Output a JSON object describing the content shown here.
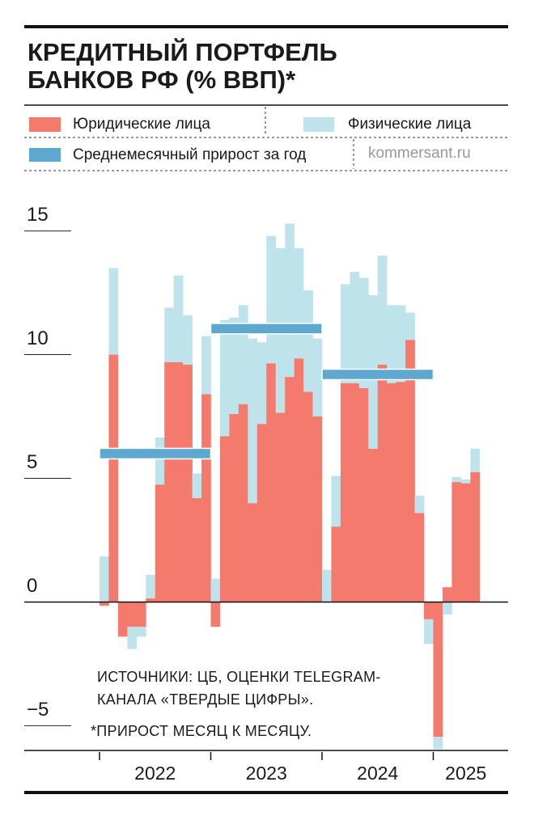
{
  "chart_data": {
    "type": "bar",
    "stacked": true,
    "title": [
      "КРЕДИТНЫЙ ПОРТФЕЛЬ",
      "БАНКОВ РФ (% ВВП)*"
    ],
    "source": "kommersant.ru",
    "notes": [
      "ИСТОЧНИКИ: ЦБ, ОЦЕНКИ TELEGRAM-",
      "КАНАЛА «ТВЕРДЫЕ ЦИФРЫ».",
      "*ПРИРОСТ МЕСЯЦ К МЕСЯЦУ."
    ],
    "years": [
      "2022",
      "2023",
      "2024",
      "2025"
    ],
    "categories": [
      null,
      null,
      null,
      null,
      null,
      null,
      null,
      null,
      null,
      null,
      null,
      null,
      null,
      null,
      null,
      null,
      null,
      null,
      null,
      null,
      null,
      null,
      null,
      null,
      null,
      null,
      null,
      null,
      null,
      null,
      null,
      null,
      null,
      null,
      null,
      null,
      null,
      null,
      null,
      null,
      null
    ],
    "series": [
      {
        "name": "Юридические лица",
        "color": "#f47a6e",
        "values": [
          -0.15,
          10.0,
          -1.4,
          -1.0,
          -1.0,
          0.15,
          4.75,
          9.7,
          9.7,
          9.6,
          4.2,
          8.4,
          -1.0,
          6.7,
          7.6,
          8.0,
          4.0,
          7.2,
          9.65,
          7.65,
          9.1,
          9.85,
          8.5,
          7.5,
          0,
          3.05,
          8.85,
          8.85,
          8.65,
          6.2,
          9.6,
          8.85,
          8.9,
          10.6,
          3.6,
          -0.7,
          -5.45,
          0.6,
          4.85,
          4.8,
          5.25
        ]
      },
      {
        "name": "Физические лица",
        "color": "#bfe3ea",
        "values": [
          1.85,
          3.5,
          0,
          -0.9,
          -0.4,
          0.95,
          1.9,
          2.2,
          3.5,
          2.0,
          1.0,
          2.35,
          0.95,
          4.7,
          3.9,
          4.0,
          6.65,
          3.3,
          5.15,
          6.65,
          6.2,
          4.45,
          4.1,
          3.15,
          1.3,
          2.05,
          4.0,
          4.5,
          4.45,
          6.2,
          4.4,
          3.15,
          3.1,
          1.1,
          0.7,
          -1.0,
          -0.5,
          -0.5,
          0.2,
          0.15,
          0.95
        ]
      }
    ],
    "annual_average": {
      "name": "Среднемесячный прирост за год",
      "color": "#5ea8cf",
      "values": [
        6.0,
        11.05,
        9.2,
        null
      ]
    },
    "ylim": [
      -6,
      16
    ],
    "yticks": [
      15,
      10,
      5,
      0,
      {
        "value": -5,
        "label": "−5"
      }
    ]
  }
}
